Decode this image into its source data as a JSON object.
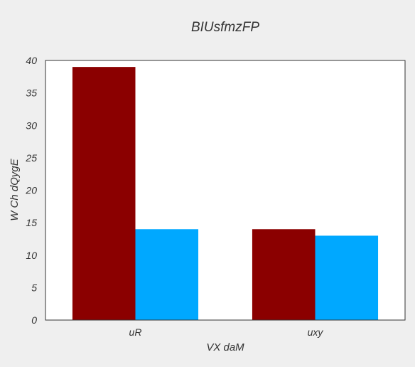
{
  "chart_data": {
    "type": "bar",
    "title": "BIUsfmzFP",
    "xlabel": "VX  daM",
    "ylabel": "W  Ch dQygE",
    "categories": [
      "uR",
      "uxy"
    ],
    "series": [
      {
        "values": [
          39,
          14
        ],
        "color": "#8b0000"
      },
      {
        "values": [
          14,
          13
        ],
        "color": "#00a8ff"
      }
    ],
    "ylim": [
      0,
      40
    ],
    "yticks": [
      0,
      5,
      10,
      15,
      20,
      25,
      30,
      35,
      40
    ],
    "grid": false,
    "legend": "none",
    "colors": {
      "background": "#efefef",
      "plot_background": "#ffffff",
      "axis": "#333333",
      "text": "#333333"
    }
  }
}
